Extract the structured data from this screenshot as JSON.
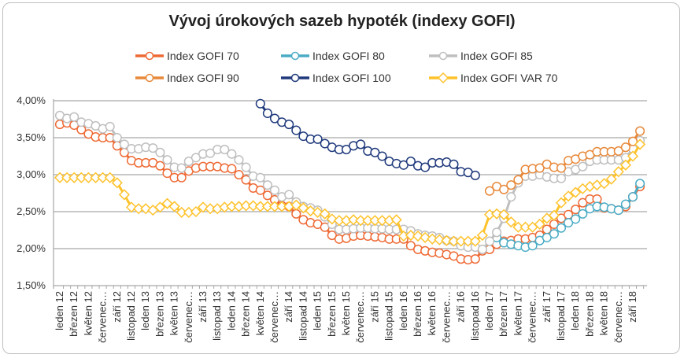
{
  "chart_data": {
    "type": "line",
    "title": "Vývoj úrokových sazeb hypoték (indexy GOFI)",
    "xlabel": "",
    "ylabel": "",
    "ylim": [
      1.5,
      4.0
    ],
    "yticks": [
      "1,50%",
      "2,00%",
      "2,50%",
      "3,00%",
      "3,50%",
      "4,00%"
    ],
    "ytick_values": [
      1.5,
      2.0,
      2.5,
      3.0,
      3.5,
      4.0
    ],
    "grid": true,
    "legend": "top",
    "categories": [
      "leden 12",
      "únor 12",
      "březen 12",
      "duben 12",
      "květen 12",
      "červen 12",
      "červenec 12",
      "srpen 12",
      "září 12",
      "říjen 12",
      "listopad 12",
      "prosinec 12",
      "leden 13",
      "únor 13",
      "březen 13",
      "duben 13",
      "květen 13",
      "červen 13",
      "červenec 13",
      "srpen 13",
      "září 13",
      "říjen 13",
      "listopad 13",
      "prosinec 13",
      "leden 14",
      "únor 14",
      "březen 14",
      "duben 14",
      "květen 14",
      "červen 14",
      "červenec 14",
      "srpen 14",
      "září 14",
      "říjen 14",
      "listopad 14",
      "prosinec 14",
      "leden 15",
      "únor 15",
      "březen 15",
      "duben 15",
      "květen 15",
      "červen 15",
      "červenec 15",
      "srpen 15",
      "září 15",
      "říjen 15",
      "listopad 15",
      "prosinec 15",
      "leden 16",
      "únor 16",
      "březen 16",
      "duben 16",
      "květen 16",
      "červen 16",
      "červenec 16",
      "srpen 16",
      "září 16",
      "říjen 16",
      "listopad 16",
      "prosinec 16",
      "leden 17",
      "únor 17",
      "březen 17",
      "duben 17",
      "květen 17",
      "červen 17",
      "červenec 17",
      "srpen 17",
      "září 17",
      "říjen 17",
      "listopad 17",
      "prosinec 17",
      "leden 18",
      "únor 18",
      "březen 18",
      "duben 18",
      "květen 18",
      "červen 18",
      "červenec 18",
      "srpen 18",
      "září 18",
      "říjen 18"
    ],
    "series": [
      {
        "name": "Index GOFI 70",
        "color": "#EE6A35",
        "marker": "circle",
        "values": [
          3.68,
          3.7,
          3.67,
          3.61,
          3.55,
          3.51,
          3.5,
          3.5,
          3.39,
          3.3,
          3.19,
          3.16,
          3.16,
          3.16,
          3.12,
          3.02,
          2.96,
          2.96,
          3.05,
          3.09,
          3.11,
          3.11,
          3.11,
          3.09,
          3.08,
          3.0,
          2.93,
          2.82,
          2.79,
          2.72,
          2.66,
          2.58,
          2.57,
          2.47,
          2.39,
          2.35,
          2.33,
          2.29,
          2.18,
          2.13,
          2.14,
          2.17,
          2.18,
          2.17,
          2.16,
          2.15,
          2.13,
          2.13,
          2.13,
          2.04,
          1.99,
          1.97,
          1.95,
          1.94,
          1.92,
          1.9,
          1.86,
          1.85,
          1.86,
          1.97,
          1.99,
          2.06,
          2.1,
          2.11,
          2.13,
          2.13,
          2.15,
          2.18,
          2.26,
          2.33,
          2.41,
          2.46,
          2.53,
          2.62,
          2.67,
          2.67,
          2.55,
          2.54,
          2.52,
          2.57,
          2.7,
          2.84
        ]
      },
      {
        "name": "Index GOFI 80",
        "color": "#4BACC6",
        "marker": "circle",
        "values": [
          null,
          null,
          null,
          null,
          null,
          null,
          null,
          null,
          null,
          null,
          null,
          null,
          null,
          null,
          null,
          null,
          null,
          null,
          null,
          null,
          null,
          null,
          null,
          null,
          null,
          null,
          null,
          null,
          null,
          null,
          null,
          null,
          null,
          null,
          null,
          null,
          null,
          null,
          null,
          null,
          null,
          null,
          null,
          null,
          null,
          null,
          null,
          null,
          null,
          null,
          null,
          null,
          null,
          null,
          null,
          null,
          null,
          null,
          null,
          null,
          null,
          2.15,
          2.08,
          2.06,
          2.04,
          2.02,
          2.04,
          2.11,
          2.15,
          2.2,
          2.28,
          2.35,
          2.4,
          2.47,
          2.54,
          2.57,
          2.56,
          2.54,
          2.52,
          2.6,
          2.7,
          2.88
        ]
      },
      {
        "name": "Index GOFI 85",
        "color": "#BFBFBF",
        "marker": "circle",
        "values": [
          3.8,
          3.76,
          3.78,
          3.71,
          3.69,
          3.66,
          3.62,
          3.65,
          3.5,
          3.41,
          3.35,
          3.35,
          3.37,
          3.36,
          3.3,
          3.2,
          3.1,
          3.09,
          3.18,
          3.23,
          3.28,
          3.29,
          3.34,
          3.34,
          3.28,
          3.2,
          3.1,
          2.98,
          2.96,
          2.86,
          2.79,
          2.7,
          2.73,
          2.63,
          2.57,
          2.55,
          2.52,
          2.43,
          2.33,
          2.26,
          2.26,
          2.27,
          2.28,
          2.28,
          2.27,
          2.27,
          2.26,
          2.26,
          2.26,
          2.24,
          2.2,
          2.18,
          2.17,
          2.15,
          2.11,
          2.1,
          2.04,
          2.02,
          2.02,
          1.99,
          2.1,
          2.22,
          2.41,
          2.7,
          2.89,
          2.98,
          2.98,
          3.0,
          2.97,
          2.95,
          2.95,
          3.04,
          3.07,
          3.11,
          3.18,
          3.2,
          3.2,
          3.2,
          3.2,
          3.23,
          3.35,
          3.46
        ]
      },
      {
        "name": "Index GOFI 90",
        "color": "#E8893A",
        "marker": "circle",
        "values": [
          null,
          null,
          null,
          null,
          null,
          null,
          null,
          null,
          null,
          null,
          null,
          null,
          null,
          null,
          null,
          null,
          null,
          null,
          null,
          null,
          null,
          null,
          null,
          null,
          null,
          null,
          null,
          null,
          null,
          null,
          null,
          null,
          null,
          null,
          null,
          null,
          null,
          null,
          null,
          null,
          null,
          null,
          null,
          null,
          null,
          null,
          null,
          null,
          null,
          null,
          null,
          null,
          null,
          null,
          null,
          null,
          null,
          null,
          null,
          null,
          2.78,
          2.84,
          2.8,
          2.86,
          2.93,
          3.07,
          3.08,
          3.09,
          3.14,
          3.1,
          3.09,
          3.19,
          3.21,
          3.25,
          3.27,
          3.31,
          3.31,
          3.31,
          3.32,
          3.37,
          3.45,
          3.59
        ]
      },
      {
        "name": "Index GOFI 100",
        "color": "#203A7C",
        "marker": "circle",
        "values": [
          null,
          null,
          null,
          null,
          null,
          null,
          null,
          null,
          null,
          null,
          null,
          null,
          null,
          null,
          null,
          null,
          null,
          null,
          null,
          null,
          null,
          null,
          null,
          null,
          null,
          null,
          null,
          null,
          3.96,
          3.83,
          3.76,
          3.71,
          3.68,
          3.6,
          3.52,
          3.48,
          3.48,
          3.42,
          3.37,
          3.34,
          3.34,
          3.39,
          3.41,
          3.32,
          3.3,
          3.25,
          3.18,
          3.15,
          3.13,
          3.18,
          3.12,
          3.1,
          3.16,
          3.16,
          3.17,
          3.14,
          3.04,
          3.03,
          2.99,
          null,
          null,
          null,
          null,
          null,
          null,
          null,
          null,
          null,
          null,
          null,
          null,
          null,
          null,
          null,
          null,
          null,
          null,
          null,
          null,
          null,
          null,
          null
        ]
      },
      {
        "name": "Index GOFI VAR 70",
        "color": "#FFC22B",
        "marker": "diamond",
        "values": [
          2.96,
          2.96,
          2.96,
          2.96,
          2.96,
          2.96,
          2.96,
          2.96,
          2.89,
          2.73,
          2.56,
          2.54,
          2.54,
          2.52,
          2.56,
          2.61,
          2.57,
          2.49,
          2.49,
          2.5,
          2.56,
          2.54,
          2.54,
          2.56,
          2.57,
          2.57,
          2.58,
          2.58,
          2.57,
          2.57,
          2.57,
          2.57,
          2.57,
          2.59,
          2.55,
          2.51,
          2.49,
          2.47,
          2.4,
          2.38,
          2.38,
          2.39,
          2.38,
          2.38,
          2.38,
          2.38,
          2.38,
          2.39,
          2.17,
          2.18,
          2.17,
          2.15,
          2.13,
          2.12,
          2.11,
          2.1,
          2.1,
          2.1,
          2.1,
          2.18,
          2.46,
          2.47,
          2.46,
          2.36,
          2.29,
          2.29,
          2.29,
          2.33,
          2.41,
          2.45,
          2.62,
          2.71,
          2.76,
          2.81,
          2.84,
          2.86,
          2.88,
          2.94,
          3.04,
          3.13,
          3.25,
          3.41
        ]
      }
    ]
  }
}
